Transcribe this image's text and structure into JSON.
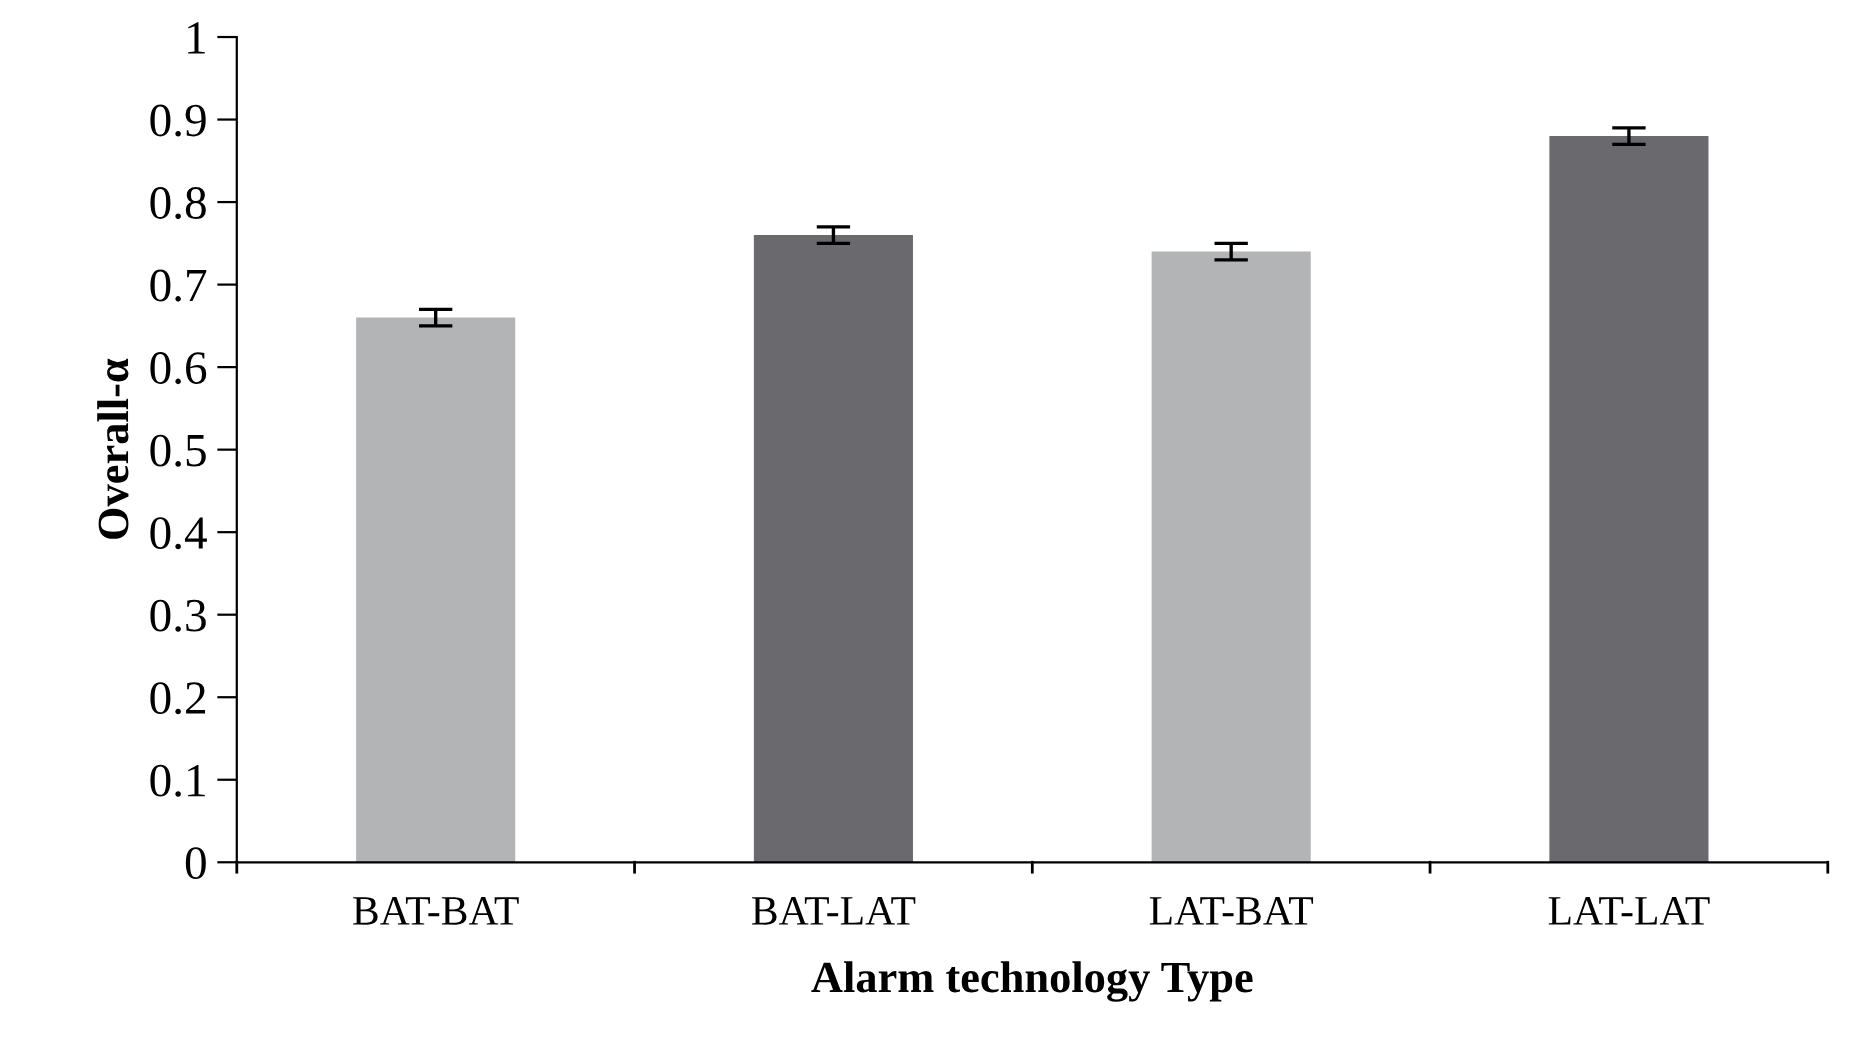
{
  "chart_data": {
    "type": "bar",
    "xlabel": "Alarm technology Type",
    "ylabel": "Overall-α",
    "categories": [
      "BAT-BAT",
      "BAT-LAT",
      "LAT-BAT",
      "LAT-LAT"
    ],
    "values": [
      0.66,
      0.76,
      0.74,
      0.88
    ],
    "errors": [
      0.01,
      0.01,
      0.01,
      0.01
    ],
    "colors": [
      "#b3b4b6",
      "#6a696e",
      "#b3b4b6",
      "#6a696e"
    ],
    "ylim": [
      0,
      1
    ],
    "yticks": [
      0,
      0.1,
      0.2,
      0.3,
      0.4,
      0.5,
      0.6,
      0.7,
      0.8,
      0.9,
      1
    ],
    "grid": false,
    "legend": false
  }
}
